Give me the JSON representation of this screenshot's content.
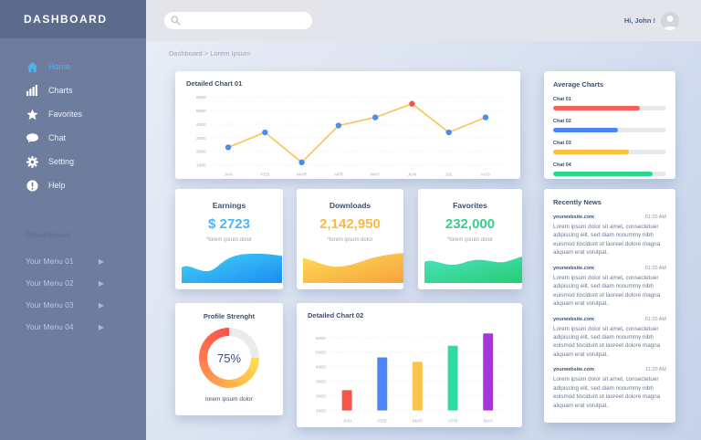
{
  "sidebar": {
    "title": "DASHBOARD",
    "items": [
      {
        "label": "Home",
        "icon": "home-icon",
        "active": true
      },
      {
        "label": "Charts",
        "icon": "charts-icon",
        "active": false
      },
      {
        "label": "Favorites",
        "icon": "star-icon",
        "active": false
      },
      {
        "label": "Chat",
        "icon": "chat-icon",
        "active": false
      },
      {
        "label": "Setting",
        "icon": "gear-icon",
        "active": false
      },
      {
        "label": "Help",
        "icon": "help-icon",
        "active": false
      }
    ],
    "section_label": "Development",
    "dev_items": [
      "Your Menu 01",
      "Your Menu 02",
      "Your Menu 03",
      "Your Menu 04"
    ]
  },
  "topbar": {
    "search_value": "",
    "greeting": "Hi, John !"
  },
  "breadcrumb": "Dashboard > Lorem Ipsum",
  "panels": {
    "chart01_title": "Detailed Chart 01",
    "avg_title": "Average Charts",
    "news_title": "Recently News",
    "chart02_title": "Detailed Chart 02"
  },
  "stats": {
    "earnings": {
      "title": "Earnings",
      "value": "$ 2723",
      "note": "*lorem ipsum dolor",
      "color": "#49b8f7"
    },
    "downloads": {
      "title": "Downloads",
      "value": "2,142,950",
      "note": "*lorem ipsum dolor",
      "color": "#f9b942"
    },
    "favorites": {
      "title": "Favorites",
      "value": "232,000",
      "note": "*lorem ipsum dolor",
      "color": "#35d08b"
    }
  },
  "avg_bars": [
    {
      "label": "Chat 01",
      "value": 77,
      "color": "#f5605a"
    },
    {
      "label": "Chat 02",
      "value": 57,
      "color": "#4a86f0"
    },
    {
      "label": "Chat 03",
      "value": 67,
      "color": "#fbc13c"
    },
    {
      "label": "Chat 04",
      "value": 88,
      "color": "#2bd98d"
    }
  ],
  "news_items": [
    {
      "source": "yourwebsite.com",
      "time": "01:20 AM",
      "body": "Lorem ipsum dolor sit amet, consectetuer adipiscing elit, sed diam nonummy nibh euismod tincidunt ut laoreet dolore magna aliquam erat volutpat."
    },
    {
      "source": "yourwebsite.com",
      "time": "01:20 AM",
      "body": "Lorem ipsum dolor sit amet, consectetuer adipiscing elit, sed diam nonummy nibh euismod tincidunt ut laoreet dolore magna aliquam erat volutpat."
    },
    {
      "source": "yourwebsite.com",
      "time": "01:20 AM",
      "body": "Lorem ipsum dolor sit amet, consectetuer adipiscing elit, sed diam nonummy nibh euismod tincidunt ut laoreet dolore magna aliquam erat volutpat."
    },
    {
      "source": "yourwebsite.com",
      "time": "11:20 AM",
      "body": "Lorem ipsum dolor sit amet, consectetuer adipiscing elit, sed diam nonummy nibh euismod tincidunt ut laoreet dolore magna aliquam erat volutpat."
    }
  ],
  "profile": {
    "title": "Profile Strenght",
    "percent": 75,
    "percent_label": "75%",
    "note": "lorem ipsum dolor",
    "ring_colors": [
      "#ffdf4f",
      "#ffb04a",
      "#ff7a50",
      "#f8514b"
    ],
    "track_color": "#e9ebee"
  },
  "chart_data": [
    {
      "type": "line",
      "title": "Detailed Chart 01",
      "x": [
        "JAN",
        "FEB",
        "MAR",
        "APR",
        "MAY",
        "JUN",
        "JUL",
        "AUG"
      ],
      "values": [
        2300,
        3400,
        1200,
        3900,
        4500,
        5500,
        3400,
        4500
      ],
      "ylim": [
        1000,
        6000
      ],
      "yticks": [
        1000,
        2000,
        3000,
        4000,
        5000,
        6000
      ],
      "grid": "dotted",
      "line_color": "#f9c45a",
      "point_color": "#4a8df0",
      "highlight_index": 5,
      "highlight_color": "#f5534b",
      "xlabel": "",
      "ylabel": ""
    },
    {
      "type": "bar",
      "title": "Detailed Chart 02",
      "categories": [
        "JAN",
        "FEB",
        "MAR",
        "APR",
        "MAY"
      ],
      "values": [
        2400,
        4650,
        4350,
        5450,
        6300
      ],
      "colors": [
        "#f8534b",
        "#4a86f8",
        "#fcc44e",
        "#2ed9a3",
        "#a834e0"
      ],
      "ylim": [
        1000,
        6600
      ],
      "yticks": [
        1000,
        2000,
        3000,
        4000,
        5000,
        6000
      ],
      "grid": "dotted",
      "xlabel": "",
      "ylabel": ""
    }
  ]
}
